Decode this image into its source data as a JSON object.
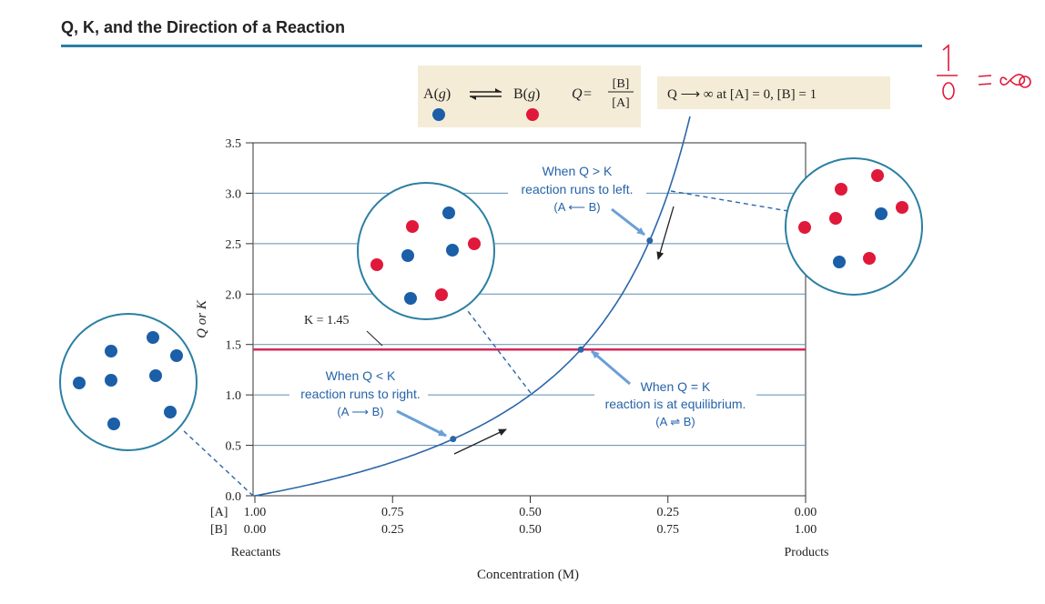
{
  "title": "Q, K, and the Direction of a Reaction",
  "handwritten_note": "1/0 = ∞",
  "colors": {
    "reactant": "#1a5fa8",
    "product": "#e0193a",
    "curve": "#2b66a8",
    "k_line": "#d4285a",
    "gridline": "#5d8fb3",
    "header_box": "#f5ecd7",
    "title_rule": "#2b7fa3",
    "callout_arrow": "#6a9fd6",
    "annotation_text": "#2563a8"
  },
  "header": {
    "reaction": {
      "reactant": "A",
      "reactant_state": "g",
      "product": "B",
      "product_state": "g",
      "q_label": "Q",
      "q_numerator": "[B]",
      "q_denominator": "[A]"
    },
    "limit_note": "Q ⟶ ∞ at [A] = 0, [B] = 1"
  },
  "chart_data": {
    "type": "line",
    "title": "Q, K, and the Direction of a Reaction",
    "xlabel": "Concentration (M)",
    "ylabel": "Q or K",
    "ylim": [
      0,
      3.5
    ],
    "yticks": [
      "0.0",
      "0.5",
      "1.0",
      "1.5",
      "2.0",
      "2.5",
      "3.0",
      "3.5"
    ],
    "xticks": [
      {
        "a": "1.00",
        "b": "0.00"
      },
      {
        "a": "0.75",
        "b": "0.25"
      },
      {
        "a": "0.50",
        "b": "0.50"
      },
      {
        "a": "0.25",
        "b": "0.75"
      },
      {
        "a": "0.00",
        "b": "1.00"
      }
    ],
    "xtick_row_labels": {
      "a": "[A]",
      "b": "[B]"
    },
    "x_end_labels": {
      "left": "Reactants",
      "right": "Products"
    },
    "grid": true,
    "series": [
      {
        "formula": "Q = [B]/[A]",
        "x_is": "[B]",
        "x_range": [
          0,
          0.79
        ]
      }
    ],
    "k_line": {
      "value": 1.45,
      "label": "K = 1.45"
    },
    "points": [
      {
        "b": 0.36,
        "q": 0.5625
      },
      {
        "b": 0.592,
        "q": 1.45
      },
      {
        "b": 0.717,
        "q": 2.53
      }
    ],
    "annotations": [
      {
        "lines": [
          "When Q < K",
          "reaction runs to right.",
          "(A ⟶ B)"
        ]
      },
      {
        "lines": [
          "When Q = K",
          "reaction is at equilibrium.",
          "(A ⇌ B)"
        ]
      },
      {
        "lines": [
          "When Q > K",
          "reaction runs to left.",
          "(A ⟵ B)"
        ]
      }
    ]
  }
}
